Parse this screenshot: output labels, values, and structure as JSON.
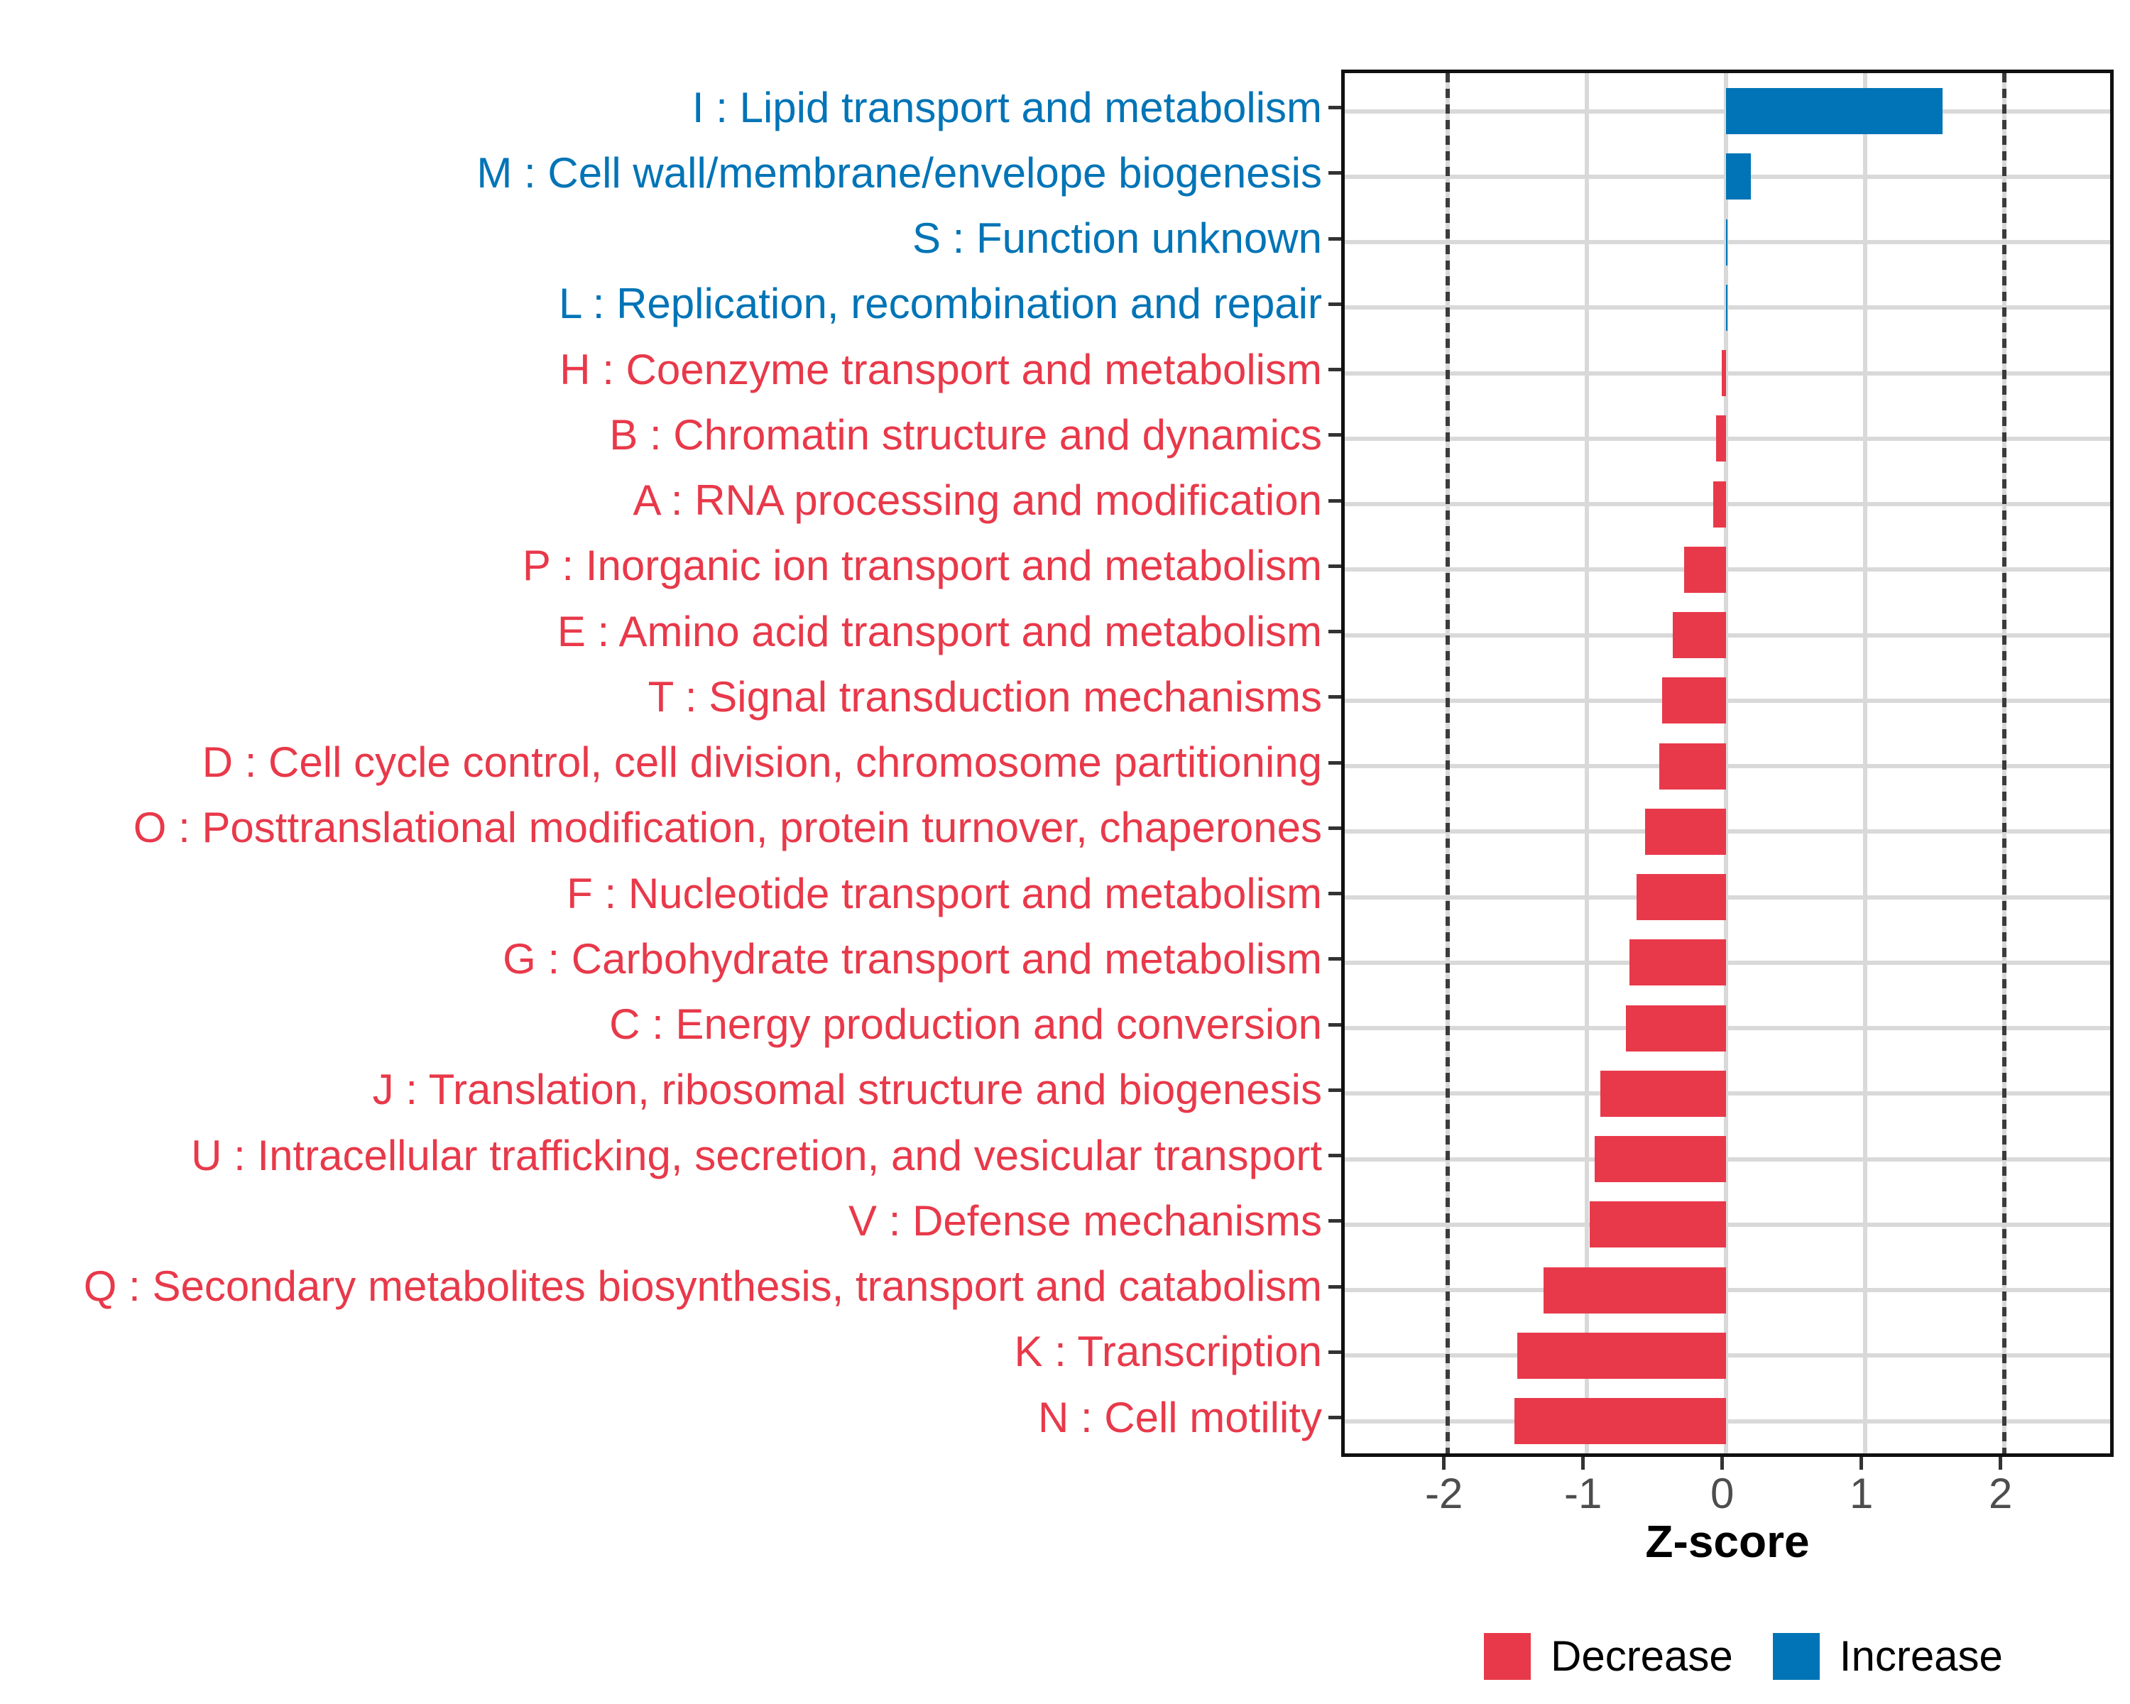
{
  "chart_data": {
    "type": "bar",
    "orientation": "horizontal",
    "xlabel": "Z-score",
    "ylabel": "",
    "xlim": [
      -2.74,
      2.81
    ],
    "x_ticks": [
      -2,
      -1,
      0,
      1,
      2
    ],
    "reference_lines": [
      -2,
      2
    ],
    "grid": true,
    "legend_position": "bottom",
    "bar_colors": {
      "Decrease": "#e8394a",
      "Increase": "#0074b6"
    },
    "categories": [
      {
        "code": "I",
        "label": "I : Lipid transport and metabolism",
        "value": 1.56,
        "group": "Increase"
      },
      {
        "code": "M",
        "label": "M : Cell wall/membrane/envelope biogenesis",
        "value": 0.18,
        "group": "Increase"
      },
      {
        "code": "S",
        "label": "S : Function unknown",
        "value": 0.01,
        "group": "Increase"
      },
      {
        "code": "L",
        "label": "L : Replication, recombination and repair",
        "value": 0.005,
        "group": "Increase"
      },
      {
        "code": "H",
        "label": "H : Coenzyme transport and metabolism",
        "value": -0.03,
        "group": "Decrease"
      },
      {
        "code": "B",
        "label": "B : Chromatin structure and dynamics",
        "value": -0.07,
        "group": "Decrease"
      },
      {
        "code": "A",
        "label": "A : RNA processing and modification",
        "value": -0.09,
        "group": "Decrease"
      },
      {
        "code": "P",
        "label": "P : Inorganic ion transport and metabolism",
        "value": -0.3,
        "group": "Decrease"
      },
      {
        "code": "E",
        "label": "E : Amino acid transport and metabolism",
        "value": -0.38,
        "group": "Decrease"
      },
      {
        "code": "T",
        "label": "T : Signal transduction mechanisms",
        "value": -0.46,
        "group": "Decrease"
      },
      {
        "code": "D",
        "label": "D : Cell cycle control, cell division, chromosome partitioning",
        "value": -0.48,
        "group": "Decrease"
      },
      {
        "code": "O",
        "label": "O : Posttranslational modification, protein turnover, chaperones",
        "value": -0.58,
        "group": "Decrease"
      },
      {
        "code": "F",
        "label": "F : Nucleotide transport and metabolism",
        "value": -0.64,
        "group": "Decrease"
      },
      {
        "code": "G",
        "label": "G : Carbohydrate transport and metabolism",
        "value": -0.69,
        "group": "Decrease"
      },
      {
        "code": "C",
        "label": "C : Energy production and conversion",
        "value": -0.72,
        "group": "Decrease"
      },
      {
        "code": "J",
        "label": "J : Translation, ribosomal structure and biogenesis",
        "value": -0.9,
        "group": "Decrease"
      },
      {
        "code": "U",
        "label": "U : Intracellular trafficking, secretion, and vesicular transport",
        "value": -0.94,
        "group": "Decrease"
      },
      {
        "code": "V",
        "label": "V : Defense mechanisms",
        "value": -0.98,
        "group": "Decrease"
      },
      {
        "code": "Q",
        "label": "Q : Secondary metabolites biosynthesis, transport and catabolism",
        "value": -1.31,
        "group": "Decrease"
      },
      {
        "code": "K",
        "label": "K : Transcription",
        "value": -1.5,
        "group": "Decrease"
      },
      {
        "code": "N",
        "label": "N : Cell motility",
        "value": -1.52,
        "group": "Decrease"
      }
    ],
    "legend": [
      {
        "label": "Decrease",
        "color": "#e8394a"
      },
      {
        "label": "Increase",
        "color": "#0074b6"
      }
    ]
  },
  "colors": {
    "panel_border": "#101010",
    "gridline": "#d9d9d9",
    "refline_dash": "#3b3b3b",
    "tick_mark": "#333333",
    "tick_label": "#4d4d4d",
    "increase_text": "#0074b6",
    "decrease_text": "#e8394a"
  }
}
